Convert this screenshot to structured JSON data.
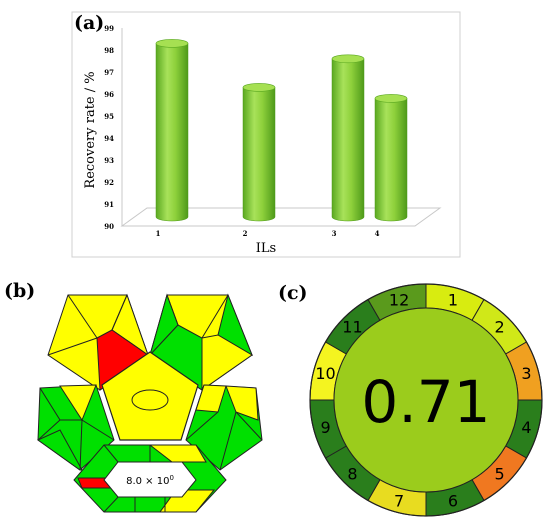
{
  "panels": {
    "a": "(a)",
    "b": "(b)",
    "c": "(c)"
  },
  "chart_data": [
    {
      "type": "bar",
      "title": "",
      "xlabel": "ILs",
      "ylabel": "Recovery rate / %",
      "categories": [
        "1",
        "2",
        "3",
        "4"
      ],
      "values": [
        98.3,
        96.3,
        97.6,
        95.8
      ],
      "ylim": [
        90,
        99
      ],
      "yticks": [
        "90",
        "91",
        "92",
        "93",
        "94",
        "95",
        "96",
        "97",
        "98",
        "99"
      ],
      "bar_style": "3d-cylinder",
      "colors": {
        "bar": "#8fd13c",
        "bar_dark": "#4e9a1a",
        "bar_top": "#a6e052"
      },
      "grid": false,
      "legend": "none"
    },
    {
      "type": "diagram",
      "name": "pentagon-assessment",
      "center_label": "8.0 × 10",
      "center_label_sup": "0",
      "colors": {
        "green": "#00e000",
        "yellow": "#ffff00",
        "red": "#ff0000"
      }
    },
    {
      "type": "pie",
      "name": "agree-wheel",
      "score": "0.71",
      "segments": [
        {
          "label": "1",
          "value": 1,
          "color": "#d8ec10"
        },
        {
          "label": "2",
          "value": 1,
          "color": "#d0e818"
        },
        {
          "label": "3",
          "value": 1,
          "color": "#f0a020"
        },
        {
          "label": "4",
          "value": 1,
          "color": "#2a7e1c"
        },
        {
          "label": "5",
          "value": 1,
          "color": "#f07820"
        },
        {
          "label": "6",
          "value": 1,
          "color": "#2a7e1c"
        },
        {
          "label": "7",
          "value": 1,
          "color": "#e8dc20"
        },
        {
          "label": "8",
          "value": 1,
          "color": "#2a7e1c"
        },
        {
          "label": "9",
          "value": 1,
          "color": "#2a7e1c"
        },
        {
          "label": "10",
          "value": 1,
          "color": "#f4f420"
        },
        {
          "label": "11",
          "value": 1,
          "color": "#2a7e1c"
        },
        {
          "label": "12",
          "value": 1,
          "color": "#5a9a1c"
        }
      ],
      "center_color": "#9bcc1c"
    }
  ]
}
